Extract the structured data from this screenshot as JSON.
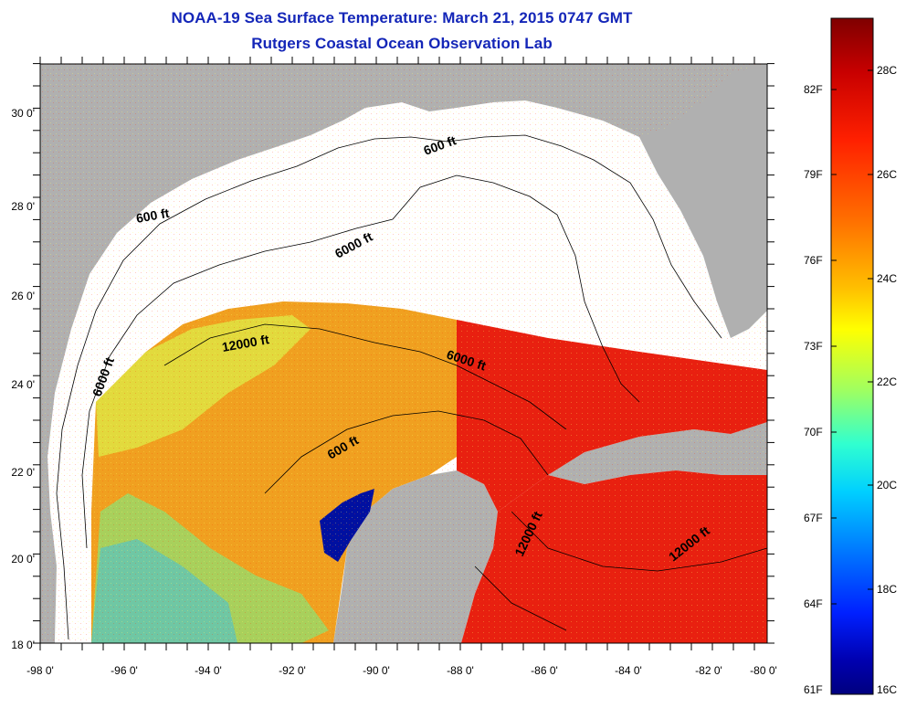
{
  "title": {
    "line1": "NOAA-19 Sea Surface Temperature:  March 21, 2015 0747 GMT",
    "line2": "Rutgers Coastal Ocean Observation Lab"
  },
  "colors": {
    "title": "#1426b8",
    "land": "#b0b0b0",
    "no_data": "#ffffff",
    "frame": "#000000"
  },
  "map": {
    "x_ticks": [
      "-98 0'",
      "-96 0'",
      "-94 0'",
      "-92 0'",
      "-90 0'",
      "-88 0'",
      "-86 0'",
      "-84 0'",
      "-82 0'",
      "-80 0'"
    ],
    "y_ticks": [
      "30 0'",
      "28 0'",
      "26 0'",
      "24 0'",
      "22 0'",
      "20 0'",
      "18 0'"
    ],
    "contour_labels": [
      "600 ft",
      "600 ft",
      "6000 ft",
      "12000 ft",
      "6000 ft",
      "6000 ft",
      "600 ft",
      "12000 ft",
      "12000 ft"
    ]
  },
  "colorbar": {
    "fahrenheit": [
      "82F",
      "79F",
      "76F",
      "73F",
      "70F",
      "67F",
      "64F",
      "61F"
    ],
    "celsius": [
      "28C",
      "26C",
      "24C",
      "22C",
      "20C",
      "18C",
      "16C"
    ],
    "gradient": [
      "#7f0000",
      "#c80000",
      "#ff2000",
      "#ff7000",
      "#ffc000",
      "#ffff00",
      "#a0ff60",
      "#30ffd0",
      "#00d0ff",
      "#0080ff",
      "#0020ff",
      "#0000b0",
      "#00007f"
    ]
  }
}
